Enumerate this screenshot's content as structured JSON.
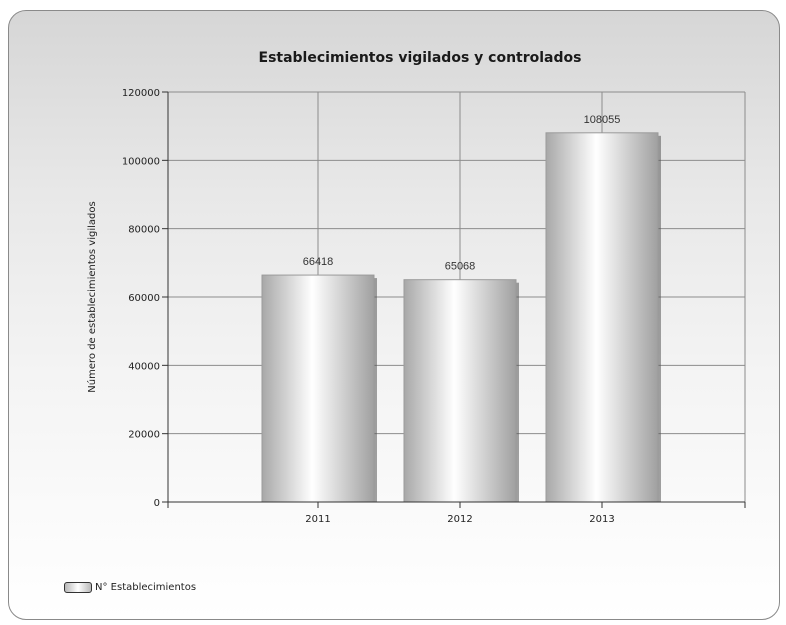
{
  "chart_data": {
    "type": "bar",
    "title": "Establecimientos vigilados y controlados",
    "ylabel": "Número de establecimientos vigilados",
    "xlabel": "",
    "categories": [
      "2011",
      "2012",
      "2013"
    ],
    "series": [
      {
        "name": "N° Establecimientos",
        "values": [
          66418,
          65068,
          108055
        ]
      }
    ],
    "data_labels": [
      "66418",
      "65068",
      "108055"
    ],
    "ylim": [
      0,
      120000
    ],
    "yticks": [
      0,
      20000,
      40000,
      60000,
      80000,
      100000,
      120000
    ],
    "grid": true,
    "legend_position": "bottom-left",
    "colors": {
      "bar_edge": "#9a9a9a",
      "bar_light": "#ffffff",
      "grid": "#8c8c8c"
    }
  }
}
